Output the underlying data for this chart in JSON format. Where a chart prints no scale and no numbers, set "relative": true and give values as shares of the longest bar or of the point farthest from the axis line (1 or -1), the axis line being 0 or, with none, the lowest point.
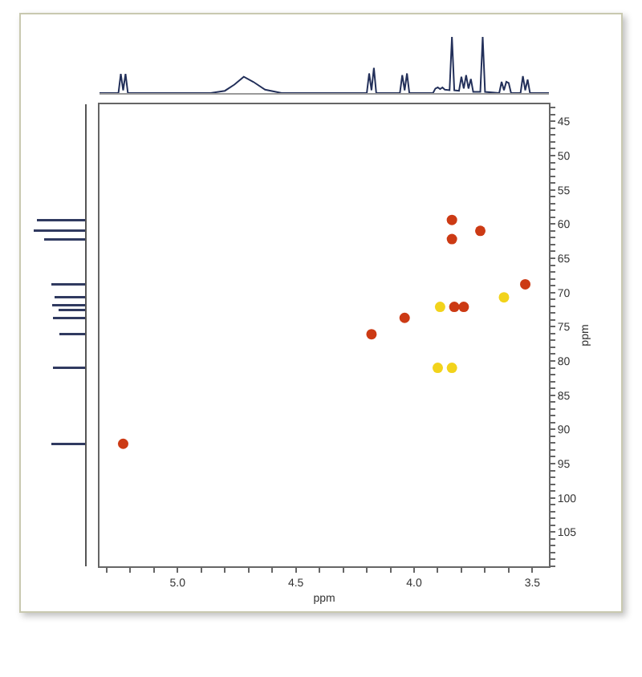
{
  "chart_data": [
    {
      "type": "line",
      "relative": true,
      "color": "#23305a",
      "xlim": [
        5.33,
        3.43
      ],
      "tick_labels": false,
      "x": [
        5.33,
        5.25,
        5.24,
        5.23,
        5.22,
        5.21,
        4.86,
        4.8,
        4.76,
        4.72,
        4.68,
        4.63,
        4.56,
        4.2,
        4.19,
        4.18,
        4.17,
        4.16,
        4.06,
        4.05,
        4.04,
        4.03,
        4.02,
        3.92,
        3.91,
        3.9,
        3.89,
        3.88,
        3.87,
        3.85,
        3.84,
        3.83,
        3.81,
        3.8,
        3.79,
        3.78,
        3.77,
        3.76,
        3.75,
        3.72,
        3.71,
        3.7,
        3.64,
        3.63,
        3.62,
        3.61,
        3.6,
        3.59,
        3.55,
        3.54,
        3.53,
        3.52,
        3.51,
        3.43
      ],
      "values": [
        0,
        0,
        0.34,
        0.05,
        0.34,
        0,
        0,
        0.04,
        0.15,
        0.29,
        0.2,
        0.06,
        0,
        0,
        0.35,
        0.05,
        0.45,
        0,
        0,
        0.32,
        0.05,
        0.35,
        0,
        0,
        0.08,
        0.1,
        0.07,
        0.1,
        0.06,
        0.05,
        1,
        0.05,
        0.04,
        0.29,
        0.08,
        0.32,
        0.08,
        0.25,
        0.02,
        0.02,
        1,
        0.02,
        0,
        0.2,
        0.05,
        0.2,
        0.18,
        0,
        0,
        0.3,
        0.05,
        0.24,
        0,
        0
      ]
    },
    {
      "type": "bar",
      "relative": true,
      "orientation": "horizontal",
      "color": "#303a60",
      "ylim": [
        110,
        42.5
      ],
      "tick_labels": false,
      "x": [
        59.4,
        61,
        62.2,
        68.8,
        70.7,
        71.9,
        72.5,
        73.7,
        76.1,
        81,
        92.1
      ],
      "values": [
        0.93,
        1,
        0.8,
        0.65,
        0.6,
        0.64,
        0.52,
        0.62,
        0.5,
        0.62,
        0.65
      ]
    },
    {
      "type": "scatter",
      "marker": "circle",
      "xlabel": "ppm",
      "ylabel": "ppm",
      "xlim": [
        5.33,
        3.43
      ],
      "ylim": [
        110,
        42.5
      ],
      "x": [
        5.23,
        4.18,
        4.04,
        3.89,
        3.83,
        3.79,
        3.84,
        3.84,
        3.72,
        3.62,
        3.53,
        3.9,
        3.84
      ],
      "values": [
        92.1,
        76.1,
        73.7,
        72.1,
        72.1,
        72.1,
        59.4,
        62.2,
        61,
        70.7,
        68.8,
        81,
        81
      ],
      "colors": [
        "#cc3a14",
        "#cc3a14",
        "#cc3a14",
        "#f2d31b",
        "#cc3a14",
        "#cc3a14",
        "#cc3a14",
        "#cc3a14",
        "#cc3a14",
        "#f2d31b",
        "#cc3a14",
        "#f2d31b",
        "#f2d31b"
      ],
      "xticks": [
        {
          "value": 5.3,
          "label": null
        },
        {
          "value": 5.2,
          "label": null
        },
        {
          "value": 5.1,
          "label": null
        },
        {
          "value": 5,
          "label": "5.0"
        },
        {
          "value": 4.9,
          "label": null
        },
        {
          "value": 4.8,
          "label": null
        },
        {
          "value": 4.7,
          "label": null
        },
        {
          "value": 4.6,
          "label": null
        },
        {
          "value": 4.5,
          "label": "4.5"
        },
        {
          "value": 4.4,
          "label": null
        },
        {
          "value": 4.3,
          "label": null
        },
        {
          "value": 4.2,
          "label": null
        },
        {
          "value": 4.1,
          "label": null
        },
        {
          "value": 4,
          "label": "4.0"
        },
        {
          "value": 3.9,
          "label": null
        },
        {
          "value": 3.8,
          "label": null
        },
        {
          "value": 3.7,
          "label": null
        },
        {
          "value": 3.6,
          "label": null
        },
        {
          "value": 3.5,
          "label": "3.5"
        }
      ],
      "yticks": [
        {
          "value": 43,
          "label": null
        },
        {
          "value": 44,
          "label": null
        },
        45,
        {
          "value": 46,
          "label": null
        },
        {
          "value": 47,
          "label": null
        },
        {
          "value": 48,
          "label": null
        },
        {
          "value": 49,
          "label": null
        },
        50,
        {
          "value": 51,
          "label": null
        },
        {
          "value": 52,
          "label": null
        },
        {
          "value": 53,
          "label": null
        },
        {
          "value": 54,
          "label": null
        },
        55,
        {
          "value": 56,
          "label": null
        },
        {
          "value": 57,
          "label": null
        },
        {
          "value": 58,
          "label": null
        },
        {
          "value": 59,
          "label": null
        },
        60,
        {
          "value": 61,
          "label": null
        },
        {
          "value": 62,
          "label": null
        },
        {
          "value": 63,
          "label": null
        },
        {
          "value": 64,
          "label": null
        },
        65,
        {
          "value": 66,
          "label": null
        },
        {
          "value": 67,
          "label": null
        },
        {
          "value": 68,
          "label": null
        },
        {
          "value": 69,
          "label": null
        },
        70,
        {
          "value": 71,
          "label": null
        },
        {
          "value": 72,
          "label": null
        },
        {
          "value": 73,
          "label": null
        },
        {
          "value": 74,
          "label": null
        },
        75,
        {
          "value": 76,
          "label": null
        },
        {
          "value": 77,
          "label": null
        },
        {
          "value": 78,
          "label": null
        },
        {
          "value": 79,
          "label": null
        },
        80,
        {
          "value": 81,
          "label": null
        },
        {
          "value": 82,
          "label": null
        },
        {
          "value": 83,
          "label": null
        },
        {
          "value": 84,
          "label": null
        },
        85,
        {
          "value": 86,
          "label": null
        },
        {
          "value": 87,
          "label": null
        },
        {
          "value": 88,
          "label": null
        },
        {
          "value": 89,
          "label": null
        },
        90,
        {
          "value": 91,
          "label": null
        },
        {
          "value": 92,
          "label": null
        },
        {
          "value": 93,
          "label": null
        },
        {
          "value": 94,
          "label": null
        },
        95,
        {
          "value": 96,
          "label": null
        },
        {
          "value": 97,
          "label": null
        },
        {
          "value": 98,
          "label": null
        },
        {
          "value": 99,
          "label": null
        },
        100,
        {
          "value": 101,
          "label": null
        },
        {
          "value": 102,
          "label": null
        },
        {
          "value": 103,
          "label": null
        },
        {
          "value": 104,
          "label": null
        },
        105,
        {
          "value": 106,
          "label": null
        },
        {
          "value": 107,
          "label": null
        },
        {
          "value": 108,
          "label": null
        },
        {
          "value": 109,
          "label": null
        },
        {
          "value": 110,
          "label": null
        }
      ]
    }
  ]
}
